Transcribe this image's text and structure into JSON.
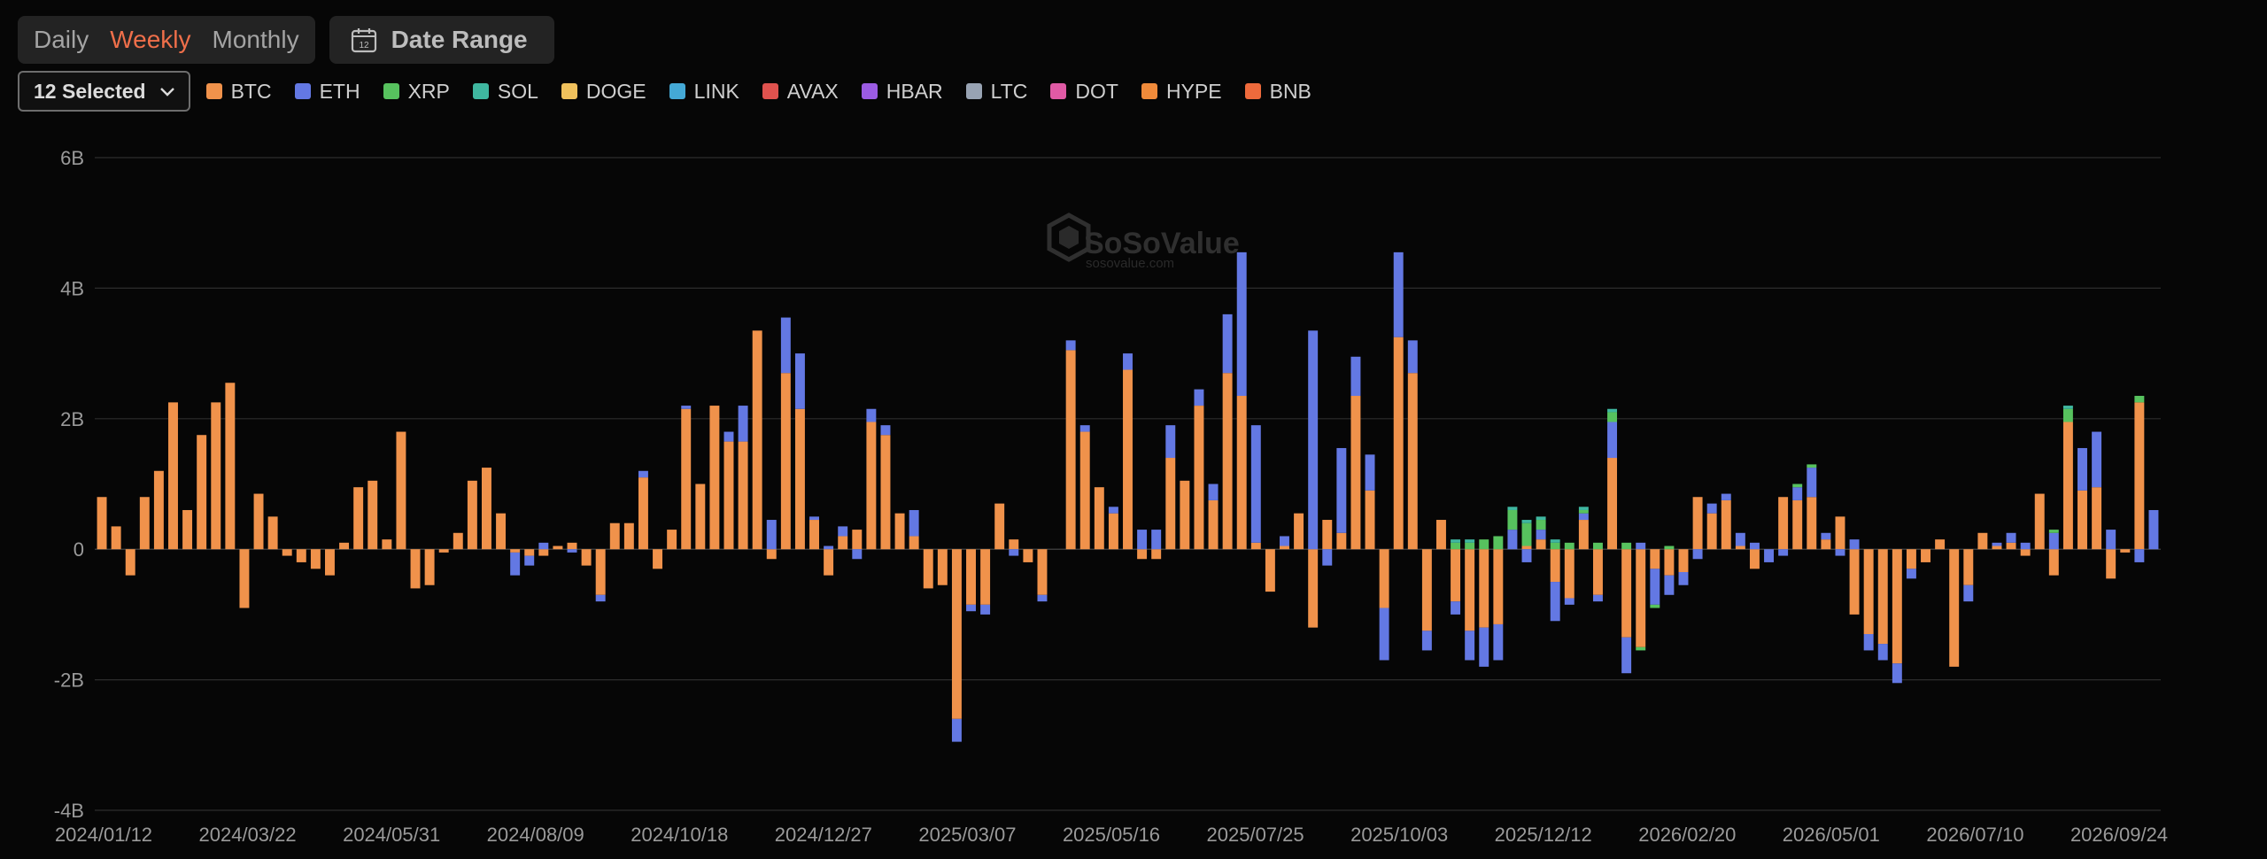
{
  "toolbar": {
    "periods": [
      "Daily",
      "Weekly",
      "Monthly"
    ],
    "active_period": "Weekly",
    "date_range_label": "Date Range",
    "calendar_icon_text": "12",
    "accent_color": "#ef6f4a"
  },
  "filter": {
    "selected_label": "12 Selected",
    "icon": "chevron-down-icon"
  },
  "legend": [
    {
      "name": "BTC",
      "color": "#f0924b"
    },
    {
      "name": "ETH",
      "color": "#6378e3"
    },
    {
      "name": "XRP",
      "color": "#57c25e"
    },
    {
      "name": "SOL",
      "color": "#3fb7a0"
    },
    {
      "name": "DOGE",
      "color": "#f0c15c"
    },
    {
      "name": "LINK",
      "color": "#44a9d6"
    },
    {
      "name": "AVAX",
      "color": "#e0524e"
    },
    {
      "name": "HBAR",
      "color": "#9b5be3"
    },
    {
      "name": "LTC",
      "color": "#98a3b3"
    },
    {
      "name": "DOT",
      "color": "#e05aa5"
    },
    {
      "name": "HYPE",
      "color": "#f08a3a"
    },
    {
      "name": "BNB",
      "color": "#ee6a3c"
    }
  ],
  "watermark": {
    "brand": "SoSoValue",
    "domain": "sosovalue.com"
  },
  "chart_data": {
    "type": "bar",
    "stacked": true,
    "ylim": [
      -4,
      6
    ],
    "yticks": [
      6,
      4,
      2,
      0,
      -2,
      -4
    ],
    "ytick_labels": [
      "6B",
      "4B",
      "2B",
      "0",
      "-2B",
      "-4B"
    ],
    "grid": true,
    "legend_position": "top-left",
    "xtick_labels": [
      "2024/01/12",
      "2024/03/22",
      "2024/05/31",
      "2024/08/09",
      "2024/10/18",
      "2024/12/27",
      "2025/03/07",
      "2025/05/16",
      "2025/07/25",
      "2025/10/03",
      "2025/12/12",
      "2026/02/20",
      "2026/05/01",
      "2026/07/10",
      "2026/09/24"
    ],
    "x_start": "2024/01/12",
    "x_end": "2026/09/24",
    "series": [
      {
        "name": "BTC",
        "values": [
          0.8,
          0.35,
          -0.4,
          0.8,
          1.2,
          2.25,
          0.6,
          1.75,
          2.25,
          2.55,
          -0.9,
          0.85,
          0.5,
          -0.1,
          -0.2,
          -0.3,
          -0.4,
          0.1,
          0.95,
          1.05,
          0.15,
          1.8,
          -0.6,
          -0.55,
          -0.05,
          0.25,
          1.05,
          1.25,
          0.55,
          -0.05,
          -0.1,
          -0.1,
          0.05,
          0.1,
          -0.25,
          -0.7,
          0.4,
          0.4,
          1.1,
          -0.3,
          0.3,
          2.15,
          1.0,
          2.2,
          1.65,
          1.65,
          3.35,
          -0.15,
          2.7,
          2.15,
          0.45,
          -0.4,
          0.2,
          0.3,
          1.95,
          1.75,
          0.55,
          0.2,
          -0.6,
          -0.55,
          -2.6,
          -0.85,
          -0.85,
          0.7,
          0.15,
          -0.2,
          -0.7,
          0.0,
          3.05,
          1.8,
          0.95,
          0.55,
          2.75,
          -0.15,
          -0.15,
          1.4,
          1.05,
          2.2,
          0.75,
          2.7,
          2.35,
          0.1,
          -0.65,
          0.05,
          0.55,
          -1.2,
          0.45,
          0.25,
          2.35,
          0.9,
          -0.9,
          3.25,
          2.7,
          -1.25,
          0.45,
          -0.8,
          -1.25,
          -1.2,
          -1.15,
          0.0,
          0.05,
          0.15,
          -0.5,
          -0.75,
          0.45,
          -0.7,
          1.4,
          -1.35,
          -1.5,
          -0.3,
          -0.4,
          -0.35,
          0.8,
          0.55,
          0.75,
          0.05,
          -0.3,
          0.0,
          0.8,
          0.75,
          0.8,
          0.15,
          0.5,
          -1.0,
          -1.3,
          -1.45,
          -1.75,
          -0.3,
          -0.2,
          0.15,
          -1.8,
          -0.55,
          0.25,
          0.05,
          0.1,
          -0.1,
          0.85,
          -0.4,
          1.95,
          0.9,
          0.95,
          -0.45,
          -0.05,
          2.25
        ]
      },
      {
        "name": "ETH",
        "values": [
          0,
          0,
          0,
          0,
          0,
          0,
          0,
          0,
          0,
          0,
          0,
          0,
          0,
          0,
          0,
          0,
          0,
          0,
          0,
          0,
          0,
          0,
          0,
          0,
          0,
          0,
          0,
          0,
          0,
          -0.35,
          -0.15,
          0.1,
          0,
          -0.05,
          0,
          -0.1,
          0,
          0,
          0.1,
          0,
          0,
          0.05,
          0,
          0,
          0.15,
          0.55,
          0,
          0.45,
          0.85,
          0.85,
          0.05,
          0.05,
          0.15,
          -0.15,
          0.2,
          0.15,
          0,
          0.4,
          0,
          0,
          -0.35,
          -0.1,
          -0.15,
          0,
          -0.1,
          0,
          -0.1,
          0,
          0.15,
          0.1,
          0,
          0.1,
          0.25,
          0.3,
          0.3,
          0.5,
          0,
          0.25,
          0.25,
          0.9,
          2.2,
          1.8,
          0,
          0.15,
          0,
          3.35,
          -0.25,
          1.3,
          0.6,
          0.55,
          -0.8,
          1.3,
          0.5,
          -0.3,
          0,
          -0.2,
          -0.45,
          -0.6,
          -0.55,
          0.3,
          -0.2,
          0.15,
          -0.6,
          -0.1,
          0.1,
          -0.1,
          0.55,
          -0.55,
          0.1,
          -0.55,
          -0.3,
          -0.2,
          -0.15,
          0.15,
          0.1,
          0.2,
          0.1,
          -0.2,
          -0.1,
          0.2,
          0.45,
          0.1,
          -0.1,
          0.15,
          -0.25,
          -0.25,
          -0.3,
          -0.15,
          0,
          0,
          0,
          -0.25,
          0,
          0.05,
          0.15,
          0.1,
          0,
          0.25,
          0,
          0.65,
          0.85,
          0.3,
          0,
          -0.2,
          0.6
        ]
      },
      {
        "name": "XRP",
        "values": [
          0,
          0,
          0,
          0,
          0,
          0,
          0,
          0,
          0,
          0,
          0,
          0,
          0,
          0,
          0,
          0,
          0,
          0,
          0,
          0,
          0,
          0,
          0,
          0,
          0,
          0,
          0,
          0,
          0,
          0,
          0,
          0,
          0,
          0,
          0,
          0,
          0,
          0,
          0,
          0,
          0,
          0,
          0,
          0,
          0,
          0,
          0,
          0,
          0,
          0,
          0,
          0,
          0,
          0,
          0,
          0,
          0,
          0,
          0,
          0,
          0,
          0,
          0,
          0,
          0,
          0,
          0,
          0,
          0,
          0,
          0,
          0,
          0,
          0,
          0,
          0,
          0,
          0,
          0,
          0,
          0,
          0,
          0,
          0,
          0,
          0,
          0,
          0,
          0,
          0,
          0,
          0,
          0,
          0,
          0,
          0.1,
          0.1,
          0.15,
          0.2,
          0.3,
          0.35,
          0.15,
          0.1,
          0.1,
          0.05,
          0.1,
          0.15,
          0.1,
          -0.05,
          -0.05,
          0.05,
          0,
          0,
          0,
          0,
          0,
          0,
          0,
          0,
          0.05,
          0.05,
          0,
          0,
          0,
          0,
          0,
          0,
          0,
          0,
          0,
          0,
          0,
          0,
          0,
          0,
          0,
          0,
          0.05,
          0.2,
          0,
          0,
          0,
          0,
          0.1
        ]
      },
      {
        "name": "SOL",
        "values": [
          0,
          0,
          0,
          0,
          0,
          0,
          0,
          0,
          0,
          0,
          0,
          0,
          0,
          0,
          0,
          0,
          0,
          0,
          0,
          0,
          0,
          0,
          0,
          0,
          0,
          0,
          0,
          0,
          0,
          0,
          0,
          0,
          0,
          0,
          0,
          0,
          0,
          0,
          0,
          0,
          0,
          0,
          0,
          0,
          0,
          0,
          0,
          0,
          0,
          0,
          0,
          0,
          0,
          0,
          0,
          0,
          0,
          0,
          0,
          0,
          0,
          0,
          0,
          0,
          0,
          0,
          0,
          0,
          0,
          0,
          0,
          0,
          0,
          0,
          0,
          0,
          0,
          0,
          0,
          0,
          0,
          0,
          0,
          0,
          0,
          0,
          0,
          0,
          0,
          0,
          0,
          0,
          0,
          0,
          0,
          0.05,
          0.05,
          0,
          0,
          0.05,
          0.05,
          0.05,
          0.05,
          0,
          0.05,
          0,
          0.05,
          0,
          0,
          0,
          0,
          0,
          0,
          0,
          0,
          0,
          0,
          0,
          0,
          0,
          0,
          0,
          0,
          0,
          0,
          0,
          0,
          0,
          0,
          0,
          0,
          0,
          0,
          0,
          0,
          0,
          0,
          0,
          0.05,
          0,
          0,
          0,
          0,
          0
        ]
      },
      {
        "name": "DOGE",
        "values": []
      },
      {
        "name": "LINK",
        "values": []
      },
      {
        "name": "AVAX",
        "values": []
      },
      {
        "name": "HBAR",
        "values": []
      },
      {
        "name": "LTC",
        "values": []
      },
      {
        "name": "DOT",
        "values": []
      },
      {
        "name": "HYPE",
        "values": []
      },
      {
        "name": "BNB",
        "values": []
      }
    ]
  }
}
